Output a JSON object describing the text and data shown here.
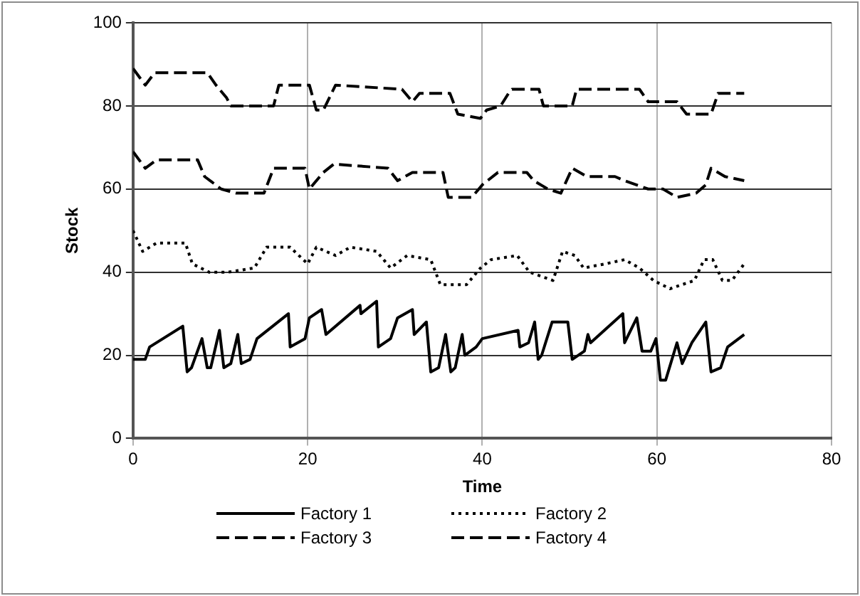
{
  "chart_data": {
    "type": "line",
    "xlabel": "Time",
    "ylabel": "Stock",
    "xlim": [
      0,
      80
    ],
    "xticks": [
      0,
      20,
      40,
      60,
      80
    ],
    "ylim": [
      0,
      100
    ],
    "yticks": [
      0,
      20,
      40,
      60,
      80,
      100
    ],
    "grid": true,
    "legend": "bottom",
    "marker": "none",
    "series": [
      {
        "name": "Factory 1",
        "color": "#000000",
        "line_style": "solid",
        "x": [
          0,
          1.4,
          1.9,
          5.7,
          6.2,
          6.7,
          7.9,
          8.5,
          8.9,
          9.9,
          10.4,
          11.2,
          12,
          12.4,
          13.4,
          14.2,
          17.8,
          18,
          19.7,
          20.2,
          21.6,
          22.1,
          26,
          26.1,
          27.9,
          28.1,
          29.5,
          30.3,
          32,
          32.2,
          33.6,
          34.1,
          35,
          35.8,
          36.4,
          36.9,
          37.7,
          38,
          39.3,
          40,
          44.1,
          44.3,
          45.3,
          46,
          46.4,
          46.8,
          48,
          49.8,
          50.3,
          51.7,
          52.1,
          52.4,
          56.1,
          56.3,
          57.7,
          58.3,
          59.3,
          59.9,
          60.4,
          61,
          62.3,
          62.9,
          64,
          65.6,
          66.2,
          67.3,
          68.1,
          70
        ],
        "values": [
          19,
          19,
          22,
          27,
          16,
          17,
          24,
          17,
          17,
          26,
          17,
          18,
          25,
          18,
          19,
          24,
          30,
          22,
          24,
          29,
          31,
          25,
          32,
          30,
          33,
          22,
          24,
          29,
          31,
          25,
          28,
          16,
          17,
          25,
          16,
          17,
          25,
          20,
          22,
          24,
          26,
          22,
          23,
          28,
          19,
          20,
          28,
          28,
          19,
          21,
          25,
          23,
          30,
          23,
          29,
          21,
          21,
          24,
          14,
          14,
          23,
          18,
          23,
          28,
          16,
          17,
          22,
          25
        ]
      },
      {
        "name": "Factory 2",
        "color": "#000000",
        "line_style": "dotted",
        "x": [
          0,
          1.1,
          2.7,
          6,
          6.8,
          8.7,
          10.9,
          13.9,
          15.3,
          18,
          20,
          21,
          23.2,
          24.9,
          27.9,
          29.5,
          31.4,
          34.1,
          35.2,
          38.2,
          39.8,
          41,
          44,
          45.4,
          48.1,
          49.2,
          50.6,
          51.6,
          54.1,
          56.3,
          58,
          59.6,
          61.5,
          64.3,
          65.4,
          66.4,
          67.5,
          68.6,
          70
        ],
        "values": [
          50,
          45,
          47,
          47,
          42,
          40,
          40,
          41,
          46,
          46,
          42,
          46,
          44,
          46,
          45,
          41,
          44,
          43,
          37,
          37,
          41,
          43,
          44,
          40,
          38,
          45,
          44,
          41,
          42,
          43,
          41,
          38,
          36,
          38,
          43,
          43,
          38,
          38,
          42
        ]
      },
      {
        "name": "Factory 3",
        "color": "#000000",
        "line_style": "dashed",
        "x": [
          0,
          1.4,
          2.7,
          7.4,
          8.2,
          10.1,
          11.8,
          15,
          16.1,
          19.7,
          20.2,
          21.8,
          23,
          29.2,
          30.3,
          32,
          35.5,
          36.1,
          38.8,
          40,
          41.8,
          45.1,
          45.9,
          47.5,
          49,
          50.3,
          52,
          55.2,
          56.3,
          59,
          60.7,
          62.3,
          64.5,
          65.6,
          66.2,
          67.8,
          70
        ],
        "values": [
          69,
          65,
          67,
          67,
          63,
          60,
          59,
          59,
          65,
          65,
          60,
          64,
          66,
          65,
          62,
          64,
          64,
          58,
          58,
          61,
          64,
          64,
          62,
          60,
          59,
          65,
          63,
          63,
          62,
          60,
          60,
          58,
          59,
          61,
          65,
          63,
          62
        ]
      },
      {
        "name": "Factory 4",
        "color": "#000000",
        "line_style": "dashed",
        "x": [
          0,
          1.4,
          2.5,
          8.5,
          9.5,
          10.7,
          11.2,
          16.1,
          16.7,
          20.2,
          21,
          21.8,
          23.2,
          30.8,
          32,
          32.8,
          36.3,
          37.2,
          39.8,
          40.5,
          42.1,
          43,
          43.4,
          46.5,
          47,
          50.3,
          50.8,
          58,
          59,
          62.3,
          63.4,
          66.2,
          67,
          70
        ],
        "values": [
          89,
          85,
          88,
          88,
          85,
          82,
          80,
          80,
          85,
          85,
          79,
          79,
          85,
          84,
          81,
          83,
          83,
          78,
          77,
          79,
          80,
          83,
          84,
          84,
          80,
          80,
          84,
          84,
          81,
          81,
          78,
          78,
          83,
          83
        ]
      }
    ]
  }
}
